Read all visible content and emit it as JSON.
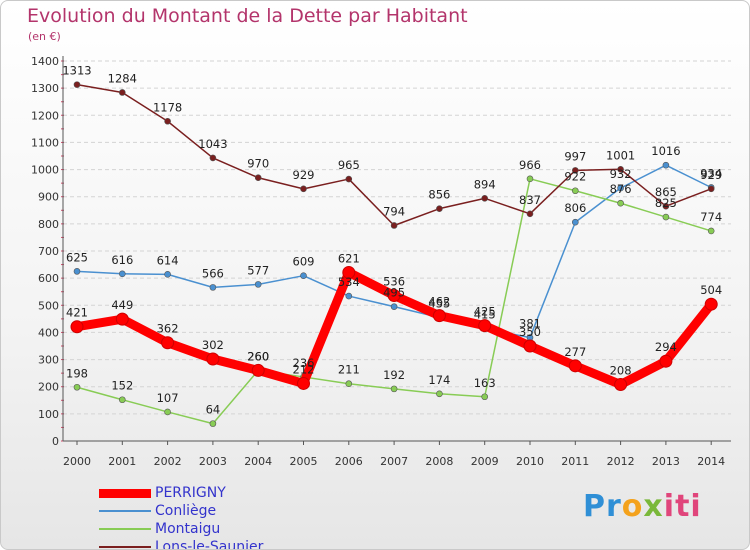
{
  "header": {
    "title": "Evolution du Montant de la Dette par Habitant",
    "subtitle": "(en €)"
  },
  "logo": {
    "part1": "Pr",
    "part2": "o",
    "part3": "x",
    "part4": "iti"
  },
  "chart_data": {
    "type": "line",
    "title": "Evolution du Montant de la Dette par Habitant",
    "ylabel": "(en €)",
    "x": [
      "2000",
      "2001",
      "2002",
      "2003",
      "2004",
      "2005",
      "2006",
      "2007",
      "2008",
      "2009",
      "2010",
      "2011",
      "2012",
      "2013",
      "2014"
    ],
    "ylim": [
      0,
      1400
    ],
    "yticks": [
      0,
      100,
      200,
      300,
      400,
      500,
      600,
      700,
      800,
      900,
      1000,
      1100,
      1200,
      1300,
      1400
    ],
    "grid": "horizontal",
    "legend_position": "bottom-left",
    "series": [
      {
        "name": "PERRIGNY",
        "color": "#ff0000",
        "values": [
          421,
          449,
          362,
          302,
          260,
          212,
          621,
          536,
          462,
          425,
          350,
          277,
          208,
          294,
          504
        ]
      },
      {
        "name": "Conliège",
        "color": "#4a90d0",
        "values": [
          625,
          616,
          614,
          566,
          577,
          609,
          534,
          495,
          455,
          415,
          381,
          806,
          932,
          1016,
          934
        ]
      },
      {
        "name": "Montaigu",
        "color": "#88cc55",
        "values": [
          198,
          152,
          107,
          64,
          260,
          236,
          211,
          192,
          174,
          163,
          966,
          922,
          876,
          825,
          774
        ]
      },
      {
        "name": "Lons-le-Saunier",
        "color": "#7a1f1f",
        "values": [
          1313,
          1284,
          1178,
          1043,
          970,
          929,
          965,
          794,
          856,
          894,
          837,
          997,
          1001,
          865,
          929
        ]
      }
    ]
  }
}
